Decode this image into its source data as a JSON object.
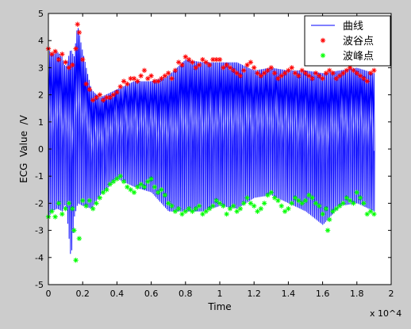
{
  "chart_data": {
    "type": "line",
    "title": "",
    "xlabel": "Time",
    "ylabel": "ECG  Value  /V",
    "x_exponent": "x 10^4",
    "xlim": [
      0,
      2
    ],
    "ylim": [
      -5,
      5
    ],
    "xticks": [
      "0",
      "0.2",
      "0.4",
      "0.6",
      "0.8",
      "1",
      "1.2",
      "1.4",
      "1.6",
      "1.8",
      "2"
    ],
    "yticks": [
      "-5",
      "-4",
      "-3",
      "-2",
      "-1",
      "0",
      "1",
      "2",
      "3",
      "4",
      "5"
    ],
    "grid": false,
    "legend_position": "top-right",
    "series": [
      {
        "name": "曲线",
        "marker": "line",
        "color": "#0000ff",
        "x": [
          0,
          0.02,
          0.05,
          0.08,
          0.1,
          0.13,
          0.15,
          0.17,
          0.2,
          0.25,
          0.3,
          0.4,
          0.5,
          0.6,
          0.7,
          0.8,
          0.9,
          1.0,
          1.1,
          1.2,
          1.3,
          1.4,
          1.5,
          1.6,
          1.7,
          1.8,
          1.9
        ],
        "upper": [
          3.7,
          3.5,
          3.6,
          3.4,
          3.0,
          3.7,
          3.4,
          4.6,
          3.6,
          2.2,
          1.9,
          2.2,
          2.5,
          2.5,
          2.7,
          3.3,
          3.2,
          3.2,
          3.2,
          2.9,
          3.0,
          2.9,
          2.9,
          2.8,
          2.9,
          3.0,
          2.8
        ],
        "lower": [
          -2.5,
          -2.3,
          -2.2,
          -2.3,
          -2.0,
          -4.1,
          -2.5,
          -2.0,
          -2.1,
          -2.2,
          -1.7,
          -1.1,
          -1.4,
          -1.6,
          -2.3,
          -2.3,
          -2.3,
          -2.1,
          -2.2,
          -1.8,
          -1.7,
          -2.0,
          -2.3,
          -2.8,
          -2.1,
          -2.0,
          -2.3
        ]
      },
      {
        "name": "波谷点",
        "marker": "*",
        "color": "#ff0000",
        "x": [
          0,
          0.02,
          0.04,
          0.06,
          0.08,
          0.1,
          0.12,
          0.14,
          0.16,
          0.17,
          0.18,
          0.2,
          0.22,
          0.24,
          0.26,
          0.28,
          0.3,
          0.32,
          0.34,
          0.36,
          0.38,
          0.4,
          0.42,
          0.44,
          0.46,
          0.48,
          0.5,
          0.52,
          0.54,
          0.56,
          0.58,
          0.6,
          0.62,
          0.64,
          0.66,
          0.68,
          0.7,
          0.72,
          0.74,
          0.76,
          0.78,
          0.8,
          0.82,
          0.84,
          0.86,
          0.88,
          0.9,
          0.92,
          0.94,
          0.96,
          0.98,
          1.0,
          1.02,
          1.04,
          1.06,
          1.08,
          1.1,
          1.12,
          1.14,
          1.16,
          1.18,
          1.2,
          1.22,
          1.24,
          1.26,
          1.28,
          1.3,
          1.32,
          1.34,
          1.36,
          1.38,
          1.4,
          1.42,
          1.44,
          1.46,
          1.48,
          1.5,
          1.52,
          1.54,
          1.56,
          1.58,
          1.6,
          1.62,
          1.64,
          1.66,
          1.68,
          1.7,
          1.72,
          1.74,
          1.76,
          1.78,
          1.8,
          1.82,
          1.84,
          1.86,
          1.88,
          1.9
        ],
        "y": [
          3.7,
          3.5,
          3.6,
          3.3,
          3.5,
          3.2,
          3.0,
          3.1,
          3.7,
          4.6,
          4.3,
          3.3,
          2.4,
          2.2,
          1.8,
          1.9,
          2.0,
          1.8,
          1.9,
          1.9,
          2.0,
          2.1,
          2.3,
          2.5,
          2.4,
          2.6,
          2.6,
          2.5,
          2.7,
          2.9,
          2.6,
          2.7,
          2.5,
          2.5,
          2.6,
          2.7,
          2.8,
          2.6,
          2.9,
          3.2,
          3.1,
          3.4,
          3.3,
          3.2,
          3.0,
          3.1,
          3.3,
          3.2,
          3.1,
          3.3,
          3.3,
          3.3,
          3.0,
          3.1,
          3.0,
          2.9,
          2.8,
          2.7,
          2.9,
          3.1,
          3.2,
          3.0,
          2.8,
          2.7,
          2.8,
          2.9,
          3.0,
          2.8,
          2.6,
          2.7,
          2.8,
          2.9,
          3.0,
          2.8,
          2.7,
          2.9,
          2.8,
          2.7,
          2.6,
          2.8,
          2.7,
          2.6,
          2.8,
          2.9,
          2.8,
          2.6,
          2.7,
          2.8,
          2.9,
          3.0,
          2.9,
          2.8,
          2.7,
          2.6,
          2.5,
          2.8,
          2.9
        ]
      },
      {
        "name": "波峰点",
        "marker": "*",
        "color": "#00ff00",
        "x": [
          0,
          0.02,
          0.04,
          0.06,
          0.08,
          0.1,
          0.12,
          0.14,
          0.15,
          0.16,
          0.18,
          0.2,
          0.22,
          0.24,
          0.26,
          0.28,
          0.3,
          0.32,
          0.34,
          0.36,
          0.38,
          0.4,
          0.42,
          0.44,
          0.46,
          0.48,
          0.5,
          0.52,
          0.54,
          0.56,
          0.58,
          0.6,
          0.62,
          0.64,
          0.66,
          0.68,
          0.7,
          0.72,
          0.74,
          0.76,
          0.78,
          0.8,
          0.82,
          0.84,
          0.86,
          0.88,
          0.9,
          0.92,
          0.94,
          0.96,
          0.98,
          1.0,
          1.02,
          1.04,
          1.06,
          1.08,
          1.1,
          1.12,
          1.14,
          1.16,
          1.18,
          1.2,
          1.22,
          1.24,
          1.26,
          1.28,
          1.3,
          1.32,
          1.34,
          1.36,
          1.38,
          1.4,
          1.42,
          1.44,
          1.46,
          1.48,
          1.5,
          1.52,
          1.54,
          1.56,
          1.58,
          1.6,
          1.62,
          1.63,
          1.64,
          1.66,
          1.68,
          1.7,
          1.72,
          1.74,
          1.76,
          1.78,
          1.8,
          1.82,
          1.84,
          1.86,
          1.88,
          1.9
        ],
        "y": [
          -2.5,
          -2.3,
          -2.5,
          -2.0,
          -2.4,
          -2.2,
          -2.0,
          -2.2,
          -3.0,
          -4.1,
          -3.3,
          -1.9,
          -2.1,
          -1.9,
          -2.2,
          -2.0,
          -1.8,
          -1.6,
          -1.5,
          -1.3,
          -1.2,
          -1.1,
          -1.0,
          -1.2,
          -1.4,
          -1.5,
          -1.6,
          -1.4,
          -1.3,
          -1.4,
          -1.2,
          -1.1,
          -1.4,
          -1.6,
          -1.5,
          -1.7,
          -2.0,
          -2.1,
          -2.3,
          -2.2,
          -2.4,
          -2.3,
          -2.2,
          -2.3,
          -2.2,
          -2.1,
          -2.4,
          -2.3,
          -2.2,
          -2.1,
          -1.9,
          -2.0,
          -2.1,
          -2.4,
          -2.2,
          -2.1,
          -2.3,
          -2.2,
          -2.0,
          -1.8,
          -2.0,
          -2.1,
          -2.3,
          -2.2,
          -2.0,
          -1.7,
          -1.6,
          -1.8,
          -1.9,
          -2.1,
          -2.3,
          -2.2,
          -2.0,
          -1.8,
          -1.9,
          -2.0,
          -1.9,
          -1.7,
          -1.8,
          -2.0,
          -2.1,
          -2.4,
          -2.2,
          -3.0,
          -2.6,
          -2.3,
          -2.2,
          -2.1,
          -2.0,
          -1.8,
          -1.9,
          -2.0,
          -1.6,
          -1.8,
          -2.0,
          -2.4,
          -2.3,
          -2.4
        ]
      }
    ]
  }
}
